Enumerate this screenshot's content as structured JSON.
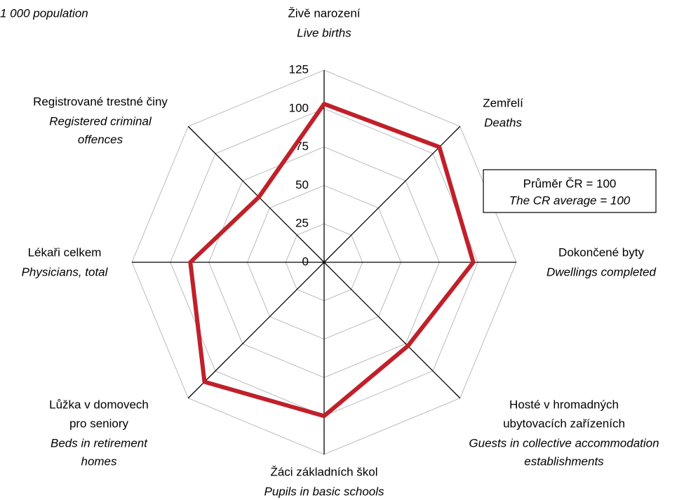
{
  "chart_data": {
    "type": "radar",
    "title": "1 000 population",
    "categories": [
      {
        "cz": [
          "Živě narození"
        ],
        "en": [
          "Live births"
        ]
      },
      {
        "cz": [
          "Zemřelí"
        ],
        "en": [
          "Deaths"
        ]
      },
      {
        "cz": [
          "Dokončené byty"
        ],
        "en": [
          "Dwellings completed"
        ]
      },
      {
        "cz": [
          "Hosté v hromadných",
          "ubytovacích zařízeních"
        ],
        "en": [
          "Guests in collective accommodation",
          "establishments"
        ]
      },
      {
        "cz": [
          "Žáci základních škol"
        ],
        "en": [
          "Pupils in basic schools"
        ]
      },
      {
        "cz": [
          "Lůžka v domovech",
          "pro seniory"
        ],
        "en": [
          "Beds in retirement",
          "homes"
        ]
      },
      {
        "cz": [
          "Lékaři celkem"
        ],
        "en": [
          "Physicians, total"
        ]
      },
      {
        "cz": [
          "Registrované trestné činy"
        ],
        "en": [
          "Registered criminal",
          "offences"
        ]
      }
    ],
    "values": [
      103,
      106,
      97,
      77,
      100,
      110,
      87,
      60
    ],
    "color": "#c0202a",
    "ylim": [
      0,
      125
    ],
    "yticks": [
      0,
      25,
      50,
      75,
      100,
      125
    ],
    "grid": true,
    "annotation": [
      "Průměr ČR = 100",
      "The CR average = 100"
    ]
  }
}
